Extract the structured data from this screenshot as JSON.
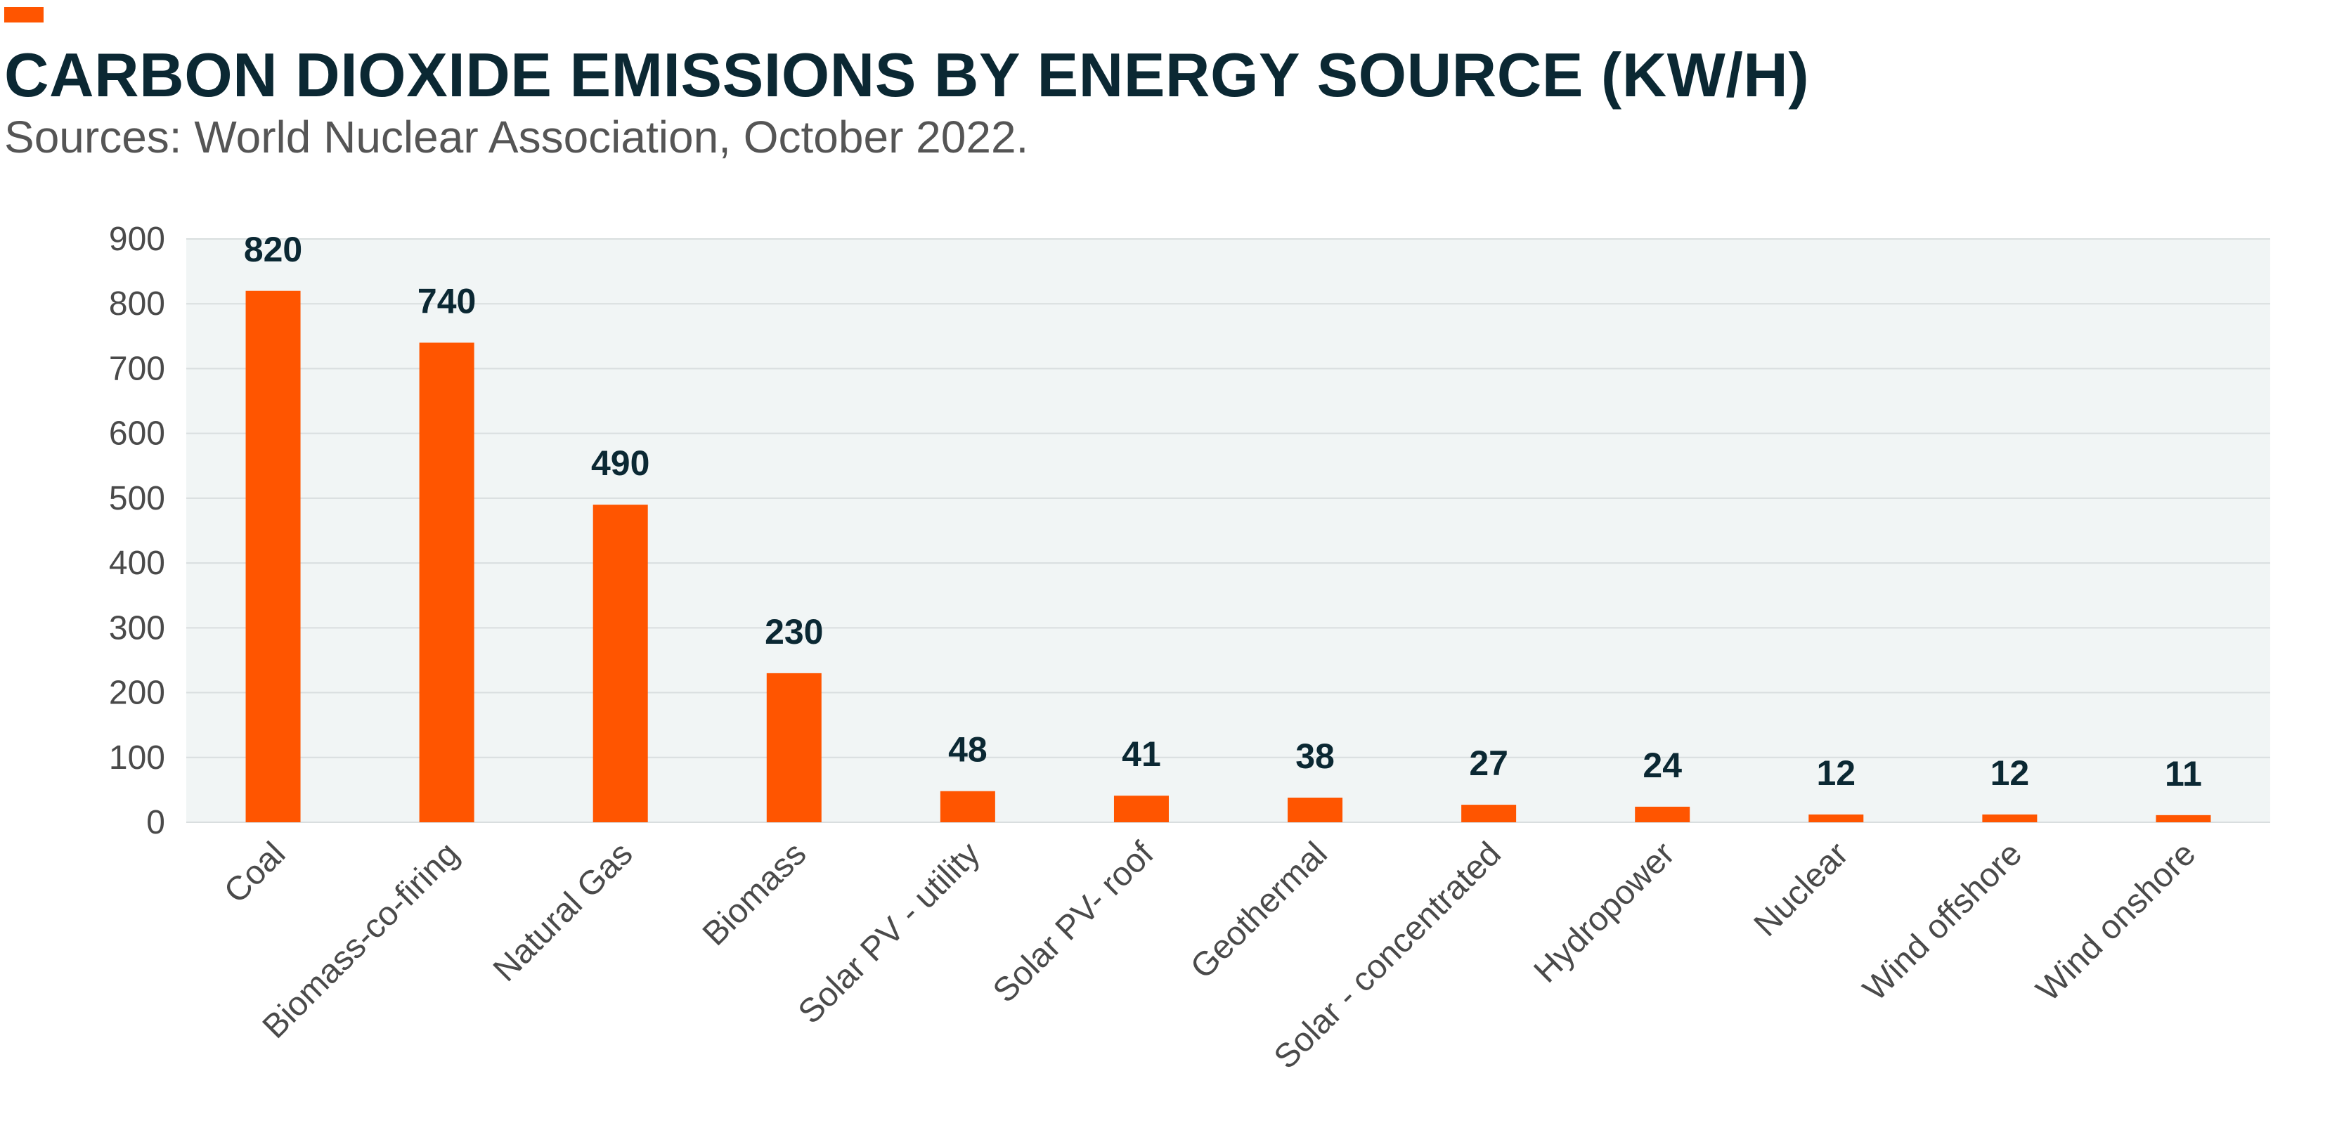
{
  "header": {
    "title": "CARBON DIOXIDE EMISSIONS BY ENERGY SOURCE (KW/H)",
    "subtitle": "Sources: World Nuclear Association, October 2022."
  },
  "colors": {
    "accent": "#FF5500",
    "bar": "#FF5500",
    "plot_background": "#F1F5F5",
    "gridline": "#D9DEDF",
    "title": "#0B2833"
  },
  "chart_data": {
    "type": "bar",
    "title": "CARBON DIOXIDE EMISSIONS BY ENERGY SOURCE (KW/H)",
    "subtitle": "Sources: World Nuclear Association, October 2022.",
    "categories": [
      "Coal",
      "Biomass-co-firing",
      "Natural Gas",
      "Biomass",
      "Solar PV - utility",
      "Solar PV- roof",
      "Geothermal",
      "Solar - concentrated",
      "Hydropower",
      "Nuclear",
      "Wind offshore",
      "Wind onshore"
    ],
    "values": [
      820,
      740,
      490,
      230,
      48,
      41,
      38,
      27,
      24,
      12,
      12,
      11
    ],
    "data_labels": [
      "820",
      "740",
      "490",
      "230",
      "48",
      "41",
      "38",
      "27",
      "24",
      "12",
      "12",
      "11"
    ],
    "y_ticks": [
      "0",
      "100",
      "200",
      "300",
      "400",
      "500",
      "600",
      "700",
      "800",
      "900"
    ],
    "ylim": [
      0,
      900
    ],
    "grid": true,
    "legend": "none",
    "xlabel": "",
    "ylabel": ""
  }
}
